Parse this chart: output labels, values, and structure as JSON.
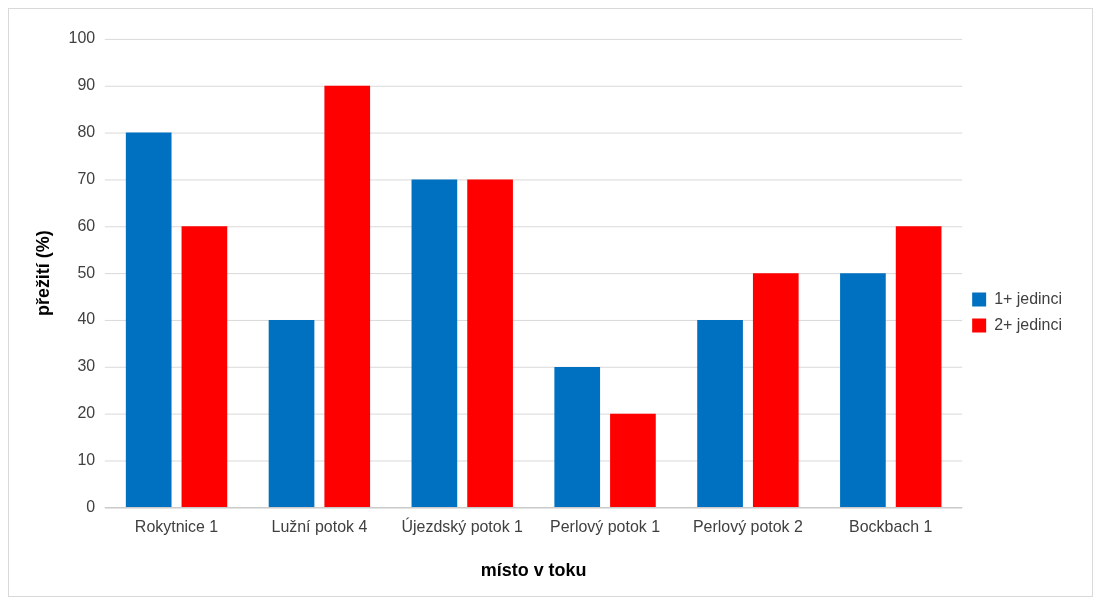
{
  "chart_data": {
    "type": "bar",
    "xlabel": "místo v toku",
    "ylabel": "přežití (%)",
    "categories": [
      "Rokytnice 1",
      "Lužní potok 4",
      "Újezdský potok 1",
      "Perlový potok 1",
      "Perlový potok 2",
      "Bockbach 1"
    ],
    "series": [
      {
        "name": "1+ jedinci",
        "color": "#0070c0",
        "values": [
          80,
          40,
          70,
          30,
          40,
          50
        ]
      },
      {
        "name": "2+ jedinci",
        "color": "#ff0000",
        "values": [
          60,
          90,
          70,
          20,
          50,
          60
        ]
      }
    ],
    "ylim": [
      0,
      100
    ],
    "yticks": [
      0,
      10,
      20,
      30,
      40,
      50,
      60,
      70,
      80,
      90,
      100
    ],
    "grid": "y",
    "legend": "right"
  }
}
